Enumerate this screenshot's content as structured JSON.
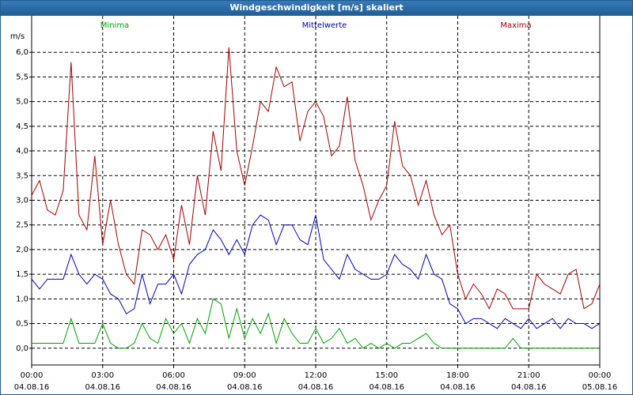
{
  "window_title": "Windgeschwindigkeit [m/s] skaliert",
  "chart_data": {
    "type": "line",
    "y_label": "m/s",
    "x": [
      "04.08.16 00:00",
      "04.08.16 00:20",
      "04.08.16 00:40",
      "04.08.16 01:00",
      "04.08.16 01:20",
      "04.08.16 01:40",
      "04.08.16 02:00",
      "04.08.16 02:20",
      "04.08.16 02:40",
      "04.08.16 03:00",
      "04.08.16 03:20",
      "04.08.16 03:40",
      "04.08.16 04:00",
      "04.08.16 04:20",
      "04.08.16 04:40",
      "04.08.16 05:00",
      "04.08.16 05:20",
      "04.08.16 05:40",
      "04.08.16 06:00",
      "04.08.16 06:20",
      "04.08.16 06:40",
      "04.08.16 07:00",
      "04.08.16 07:20",
      "04.08.16 07:40",
      "04.08.16 08:00",
      "04.08.16 08:20",
      "04.08.16 08:40",
      "04.08.16 09:00",
      "04.08.16 09:20",
      "04.08.16 09:40",
      "04.08.16 10:00",
      "04.08.16 10:20",
      "04.08.16 10:40",
      "04.08.16 11:00",
      "04.08.16 11:20",
      "04.08.16 11:40",
      "04.08.16 12:00",
      "04.08.16 12:20",
      "04.08.16 12:40",
      "04.08.16 13:00",
      "04.08.16 13:20",
      "04.08.16 13:40",
      "04.08.16 14:00",
      "04.08.16 14:20",
      "04.08.16 14:40",
      "04.08.16 15:00",
      "04.08.16 15:20",
      "04.08.16 15:40",
      "04.08.16 16:00",
      "04.08.16 16:20",
      "04.08.16 16:40",
      "04.08.16 17:00",
      "04.08.16 17:20",
      "04.08.16 17:40",
      "04.08.16 18:00",
      "04.08.16 18:20",
      "04.08.16 18:40",
      "04.08.16 19:00",
      "04.08.16 19:20",
      "04.08.16 19:40",
      "04.08.16 20:00",
      "04.08.16 20:20",
      "04.08.16 20:40",
      "04.08.16 21:00",
      "04.08.16 21:20",
      "04.08.16 21:40",
      "04.08.16 22:00",
      "04.08.16 22:20",
      "04.08.16 22:40",
      "04.08.16 23:00",
      "04.08.16 23:20",
      "04.08.16 23:40",
      "05.08.16 00:00"
    ],
    "series": [
      {
        "name": "Minima",
        "color": "#00a000",
        "values": [
          0.1,
          0.1,
          0.1,
          0.1,
          0.1,
          0.6,
          0.1,
          0.1,
          0.1,
          0.5,
          0.1,
          0.0,
          0.0,
          0.1,
          0.5,
          0.2,
          0.1,
          0.6,
          0.3,
          0.5,
          0.1,
          0.6,
          0.3,
          1.0,
          0.9,
          0.2,
          0.8,
          0.2,
          0.6,
          0.3,
          0.7,
          0.1,
          0.6,
          0.3,
          0.1,
          0.1,
          0.4,
          0.1,
          0.2,
          0.4,
          0.1,
          0.2,
          0.0,
          0.1,
          0.0,
          0.1,
          0.0,
          0.1,
          0.1,
          0.2,
          0.3,
          0.1,
          0.0,
          0.0,
          0.0,
          0.0,
          0.0,
          0.0,
          0.0,
          0.0,
          0.0,
          0.2,
          0.0,
          0.0,
          0.0,
          0.0,
          0.0,
          0.0,
          0.0,
          0.0,
          0.0,
          0.0,
          0.0
        ]
      },
      {
        "name": "Mittelwerte",
        "color": "#0000b0",
        "values": [
          1.4,
          1.2,
          1.4,
          1.4,
          1.4,
          1.9,
          1.5,
          1.3,
          1.5,
          1.4,
          1.1,
          1.0,
          0.7,
          0.8,
          1.5,
          0.9,
          1.3,
          1.3,
          1.5,
          1.1,
          1.7,
          1.9,
          2.0,
          2.4,
          2.2,
          1.9,
          2.2,
          1.9,
          2.5,
          2.7,
          2.6,
          2.1,
          2.5,
          2.5,
          2.2,
          2.1,
          2.7,
          1.8,
          1.6,
          1.4,
          1.9,
          1.6,
          1.5,
          1.4,
          1.4,
          1.5,
          1.9,
          1.7,
          1.6,
          1.4,
          1.9,
          1.5,
          1.4,
          0.9,
          0.8,
          0.5,
          0.6,
          0.6,
          0.5,
          0.4,
          0.6,
          0.5,
          0.4,
          0.6,
          0.4,
          0.5,
          0.6,
          0.4,
          0.6,
          0.5,
          0.5,
          0.4,
          0.5
        ]
      },
      {
        "name": "Maxima",
        "color": "#a00000",
        "values": [
          3.1,
          3.4,
          2.8,
          2.7,
          3.2,
          5.8,
          2.7,
          2.4,
          3.9,
          2.1,
          3.0,
          2.1,
          1.5,
          1.3,
          2.4,
          2.3,
          2.0,
          2.3,
          1.8,
          2.9,
          2.1,
          3.5,
          2.7,
          4.4,
          3.6,
          6.1,
          4.0,
          3.3,
          4.1,
          5.0,
          4.8,
          5.7,
          5.3,
          5.4,
          4.2,
          4.8,
          5.0,
          4.7,
          3.9,
          4.1,
          5.1,
          3.8,
          3.3,
          2.6,
          3.0,
          3.3,
          4.6,
          3.7,
          3.5,
          2.9,
          3.4,
          2.7,
          2.3,
          2.5,
          1.5,
          1.0,
          1.3,
          1.1,
          0.8,
          1.2,
          1.1,
          0.8,
          0.8,
          0.8,
          1.5,
          1.3,
          1.2,
          1.1,
          1.5,
          1.6,
          0.8,
          0.9,
          1.3
        ]
      }
    ],
    "xlim": [
      "04.08.16 00:00",
      "05.08.16 00:00"
    ],
    "xticks": [
      {
        "time": "00:00",
        "date": "04.08.16"
      },
      {
        "time": "03:00",
        "date": "04.08.16"
      },
      {
        "time": "06:00",
        "date": "04.08.16"
      },
      {
        "time": "09:00",
        "date": "04.08.16"
      },
      {
        "time": "12:00",
        "date": "04.08.16"
      },
      {
        "time": "15:00",
        "date": "04.08.16"
      },
      {
        "time": "18:00",
        "date": "04.08.16"
      },
      {
        "time": "21:00",
        "date": "04.08.16"
      },
      {
        "time": "00:00",
        "date": "05.08.16"
      }
    ],
    "ylim": [
      -0.34,
      6.74
    ],
    "yticks": [
      {
        "value": 0,
        "label": "0,0"
      },
      {
        "value": 0.5,
        "label": "0,5"
      },
      {
        "value": 1,
        "label": "1,0"
      },
      {
        "value": 1.5,
        "label": "1,5"
      },
      {
        "value": 2,
        "label": "2,0"
      },
      {
        "value": 2.5,
        "label": "2,5"
      },
      {
        "value": 3,
        "label": "3,0"
      },
      {
        "value": 3.5,
        "label": "3,5"
      },
      {
        "value": 4,
        "label": "4,0"
      },
      {
        "value": 4.5,
        "label": "4,5"
      },
      {
        "value": 5,
        "label": "5,0"
      },
      {
        "value": 5.5,
        "label": "5,5"
      },
      {
        "value": 6,
        "label": "6,0"
      }
    ],
    "grid": true,
    "grid_style": "dashed"
  }
}
